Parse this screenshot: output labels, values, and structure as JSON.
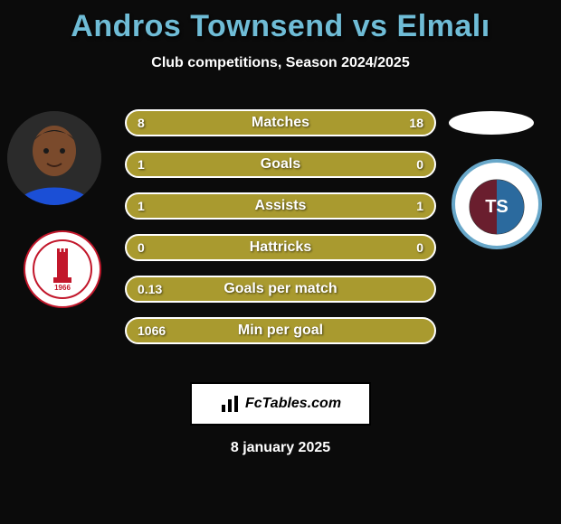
{
  "background_color": "#0b0b0b",
  "title": {
    "text": "Andros Townsend vs Elmalı",
    "color": "#6fbcd6",
    "fontsize": 34,
    "shadow": "1px 2px 3px rgba(0,0,0,0.8)"
  },
  "subtitle": {
    "text": "Club competitions, Season 2024/2025",
    "color": "#ffffff",
    "fontsize": 16
  },
  "player1": {
    "name": "Andros Townsend",
    "avatar_bg": "#2b2b2b",
    "jersey_color": "#1b4fd6",
    "skin_color": "#7a4a2c",
    "club_name": "Antalyaspor",
    "club_circle_fill": "#ffffff",
    "club_circle_border": "#c2172b",
    "club_tower_color": "#c2172b",
    "club_founded_label": "1966"
  },
  "player2": {
    "name": "Elmalı",
    "avatar_bg": "#ffffff",
    "club_name": "Trabzonspor",
    "club_circle_fill": "#68a7c9",
    "club_stripe_maroon": "#6a1e2e",
    "club_stripe_blue": "#2b6a9e",
    "club_initials": "TS"
  },
  "bars": {
    "fill_color": "#a99a2f",
    "border_color": "#ffffff",
    "border_width": 2,
    "label_color": "#ffffff",
    "value_color": "#ffffff",
    "height": 30,
    "radius": 16,
    "gap": 16,
    "rows": [
      {
        "label": "Matches",
        "left": "8",
        "right": "18"
      },
      {
        "label": "Goals",
        "left": "1",
        "right": "0"
      },
      {
        "label": "Assists",
        "left": "1",
        "right": "1"
      },
      {
        "label": "Hattricks",
        "left": "0",
        "right": "0"
      },
      {
        "label": "Goals per match",
        "left": "0.13",
        "right": ""
      },
      {
        "label": "Min per goal",
        "left": "1066",
        "right": ""
      }
    ]
  },
  "branding": {
    "text": "FcTables.com",
    "bg": "#ffffff",
    "border": "#000000",
    "text_color": "#000000",
    "icon_color": "#000000"
  },
  "date": {
    "text": "8 january 2025",
    "color": "#ffffff",
    "fontsize": 16
  }
}
